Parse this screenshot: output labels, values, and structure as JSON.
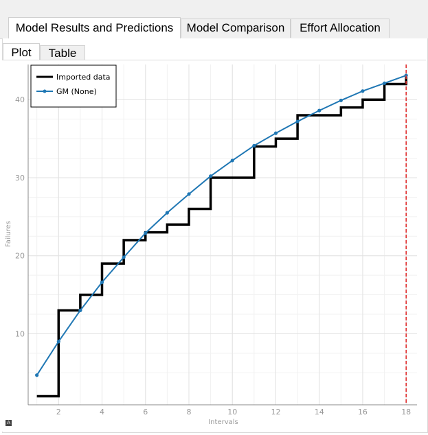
{
  "tabs": [
    {
      "label": "Model Results and Predictions",
      "active": true
    },
    {
      "label": "Model Comparison",
      "active": false
    },
    {
      "label": "Effort Allocation",
      "active": false
    }
  ],
  "subtabs": [
    {
      "label": "Plot",
      "active": true
    },
    {
      "label": "Table",
      "active": false
    }
  ],
  "corner_icon": "font-icon",
  "chart_data": {
    "type": "line",
    "xlabel": "Intervals",
    "ylabel": "Failures",
    "xlim": [
      0.6,
      18.5
    ],
    "ylim": [
      0.9,
      44.5
    ],
    "xticks": [
      2,
      4,
      6,
      8,
      10,
      12,
      14,
      16,
      18
    ],
    "yticks": [
      10,
      20,
      30,
      40
    ],
    "grid": true,
    "legend_position": "top-left",
    "series": [
      {
        "name": "Imported data",
        "style": "step",
        "color": "#000000",
        "x": [
          1,
          2,
          3,
          4,
          5,
          6,
          7,
          8,
          9,
          10,
          11,
          12,
          13,
          14,
          15,
          16,
          17,
          18
        ],
        "y": [
          2,
          13,
          15,
          19,
          22,
          23,
          24,
          26,
          30,
          30,
          34,
          35,
          38,
          38,
          39,
          40,
          42,
          43
        ]
      },
      {
        "name": "GM (None)",
        "style": "line-markers",
        "color": "#1f77b4",
        "x": [
          1,
          2,
          3,
          4,
          5,
          6,
          7,
          8,
          9,
          10,
          11,
          12,
          13,
          14,
          15,
          16,
          17,
          18
        ],
        "y": [
          4.7,
          9.0,
          13.0,
          16.6,
          19.8,
          22.9,
          25.5,
          27.9,
          30.2,
          32.2,
          34.1,
          35.7,
          37.2,
          38.6,
          39.9,
          41.1,
          42.1,
          43.1
        ]
      }
    ],
    "vline": {
      "x": 18,
      "color": "#e03030",
      "style": "dashed"
    }
  }
}
